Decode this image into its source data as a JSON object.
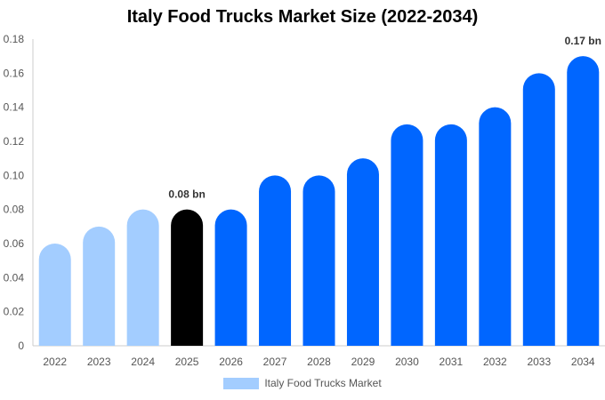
{
  "chart_data": {
    "type": "bar",
    "title": "Italy Food Trucks Market Size (2022-2034)",
    "xlabel": "",
    "ylabel": "",
    "categories": [
      "2022",
      "2023",
      "2024",
      "2025",
      "2026",
      "2027",
      "2028",
      "2029",
      "2030",
      "2031",
      "2032",
      "2033",
      "2034"
    ],
    "series": [
      {
        "name": "Italy Food Trucks Market",
        "values": [
          0.06,
          0.07,
          0.08,
          0.08,
          0.08,
          0.1,
          0.1,
          0.11,
          0.13,
          0.13,
          0.14,
          0.16,
          0.17
        ]
      }
    ],
    "ylim": [
      0,
      0.18
    ],
    "yticks": [
      "0",
      "0.02",
      "0.04",
      "0.06",
      "0.08",
      "0.10",
      "0.12",
      "0.14",
      "0.16",
      "0.18"
    ],
    "annotations": [
      {
        "category": "2025",
        "text": "0.08 bn"
      },
      {
        "category": "2034",
        "text": "0.17 bn"
      }
    ],
    "grid": false,
    "legend_position": "bottom",
    "colors": {
      "historical": "#a3cdff",
      "current": "#000000",
      "forecast": "#0066ff",
      "axis": "#cccccc"
    },
    "bar_color_groups": [
      "historical",
      "historical",
      "historical",
      "current",
      "forecast",
      "forecast",
      "forecast",
      "forecast",
      "forecast",
      "forecast",
      "forecast",
      "forecast",
      "forecast"
    ]
  }
}
